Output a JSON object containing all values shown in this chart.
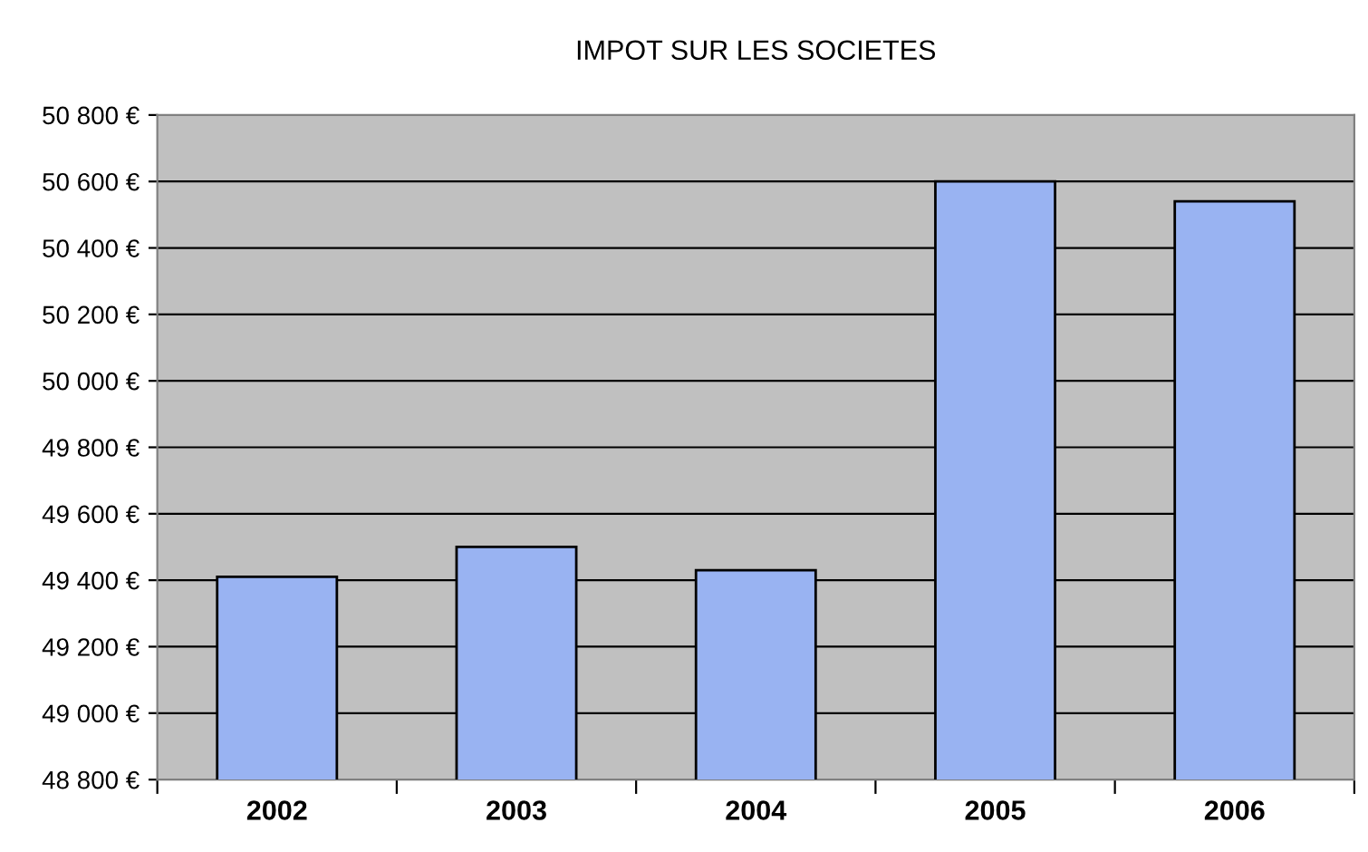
{
  "chart_data": {
    "type": "bar",
    "title": "IMPOT SUR LES SOCIETES",
    "categories": [
      "2002",
      "2003",
      "2004",
      "2005",
      "2006"
    ],
    "values": [
      49410,
      49500,
      49430,
      50600,
      50540
    ],
    "color": "#99b3f2",
    "ylim": [
      48800,
      50800
    ],
    "yticks": [
      {
        "value": 48800,
        "label": "48 800 €"
      },
      {
        "value": 49000,
        "label": "49 000 €"
      },
      {
        "value": 49200,
        "label": "49 200 €"
      },
      {
        "value": 49400,
        "label": "49 400 €"
      },
      {
        "value": 49600,
        "label": "49 600 €"
      },
      {
        "value": 49800,
        "label": "49 800 €"
      },
      {
        "value": 50000,
        "label": "50 000 €"
      },
      {
        "value": 50200,
        "label": "50 200 €"
      },
      {
        "value": 50400,
        "label": "50 400 €"
      },
      {
        "value": 50600,
        "label": "50 600 €"
      },
      {
        "value": 50800,
        "label": "50 800 €"
      }
    ],
    "grid": "y",
    "legend": false
  }
}
